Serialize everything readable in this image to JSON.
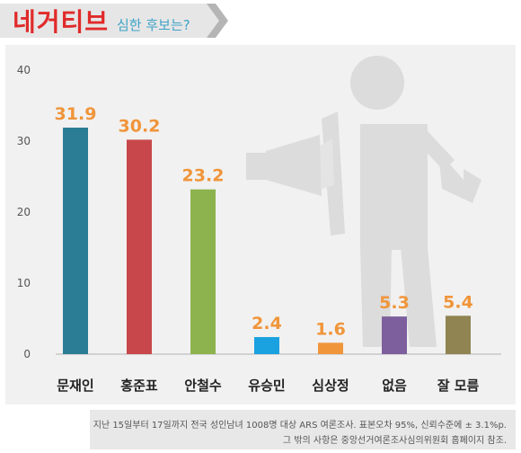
{
  "header": {
    "title": "네거티브",
    "subtitle": "심한 후보는?"
  },
  "colors": {
    "title": "#e02a2a",
    "subtitle": "#3fa3c8",
    "value_label": "#f0953a",
    "category_label": "#222222"
  },
  "chart_data": {
    "type": "bar",
    "categories": [
      "문재인",
      "홍준표",
      "안철수",
      "유승민",
      "심상정",
      "없음",
      "잘 모름"
    ],
    "values": [
      31.9,
      30.2,
      23.2,
      2.4,
      1.6,
      5.3,
      5.4
    ],
    "value_labels": [
      "31.9",
      "30.2",
      "23.2",
      "2.4",
      "1.6",
      "5.3",
      "5.4"
    ],
    "bar_colors": [
      "#2b7d96",
      "#c8474a",
      "#8cb34d",
      "#1aa1e0",
      "#f0953a",
      "#7d5f9e",
      "#8f8452"
    ],
    "ylim": [
      0,
      40
    ],
    "yticks": [
      0,
      10,
      20,
      30,
      40
    ],
    "ytick_labels": [
      "0",
      "10",
      "20",
      "30",
      "40"
    ],
    "grid": false,
    "xlabel": "",
    "ylabel": ""
  },
  "footer": {
    "line1": "지난 15일부터 17일까지 전국 성인남녀 1008명 대상 ARS 여론조사. 표본오차 95%, 신뢰수준에 ± 3.1%p.",
    "line2": "그 밖의 사항은 중앙선거여론조사심의위원회 홈페이지 참조."
  }
}
